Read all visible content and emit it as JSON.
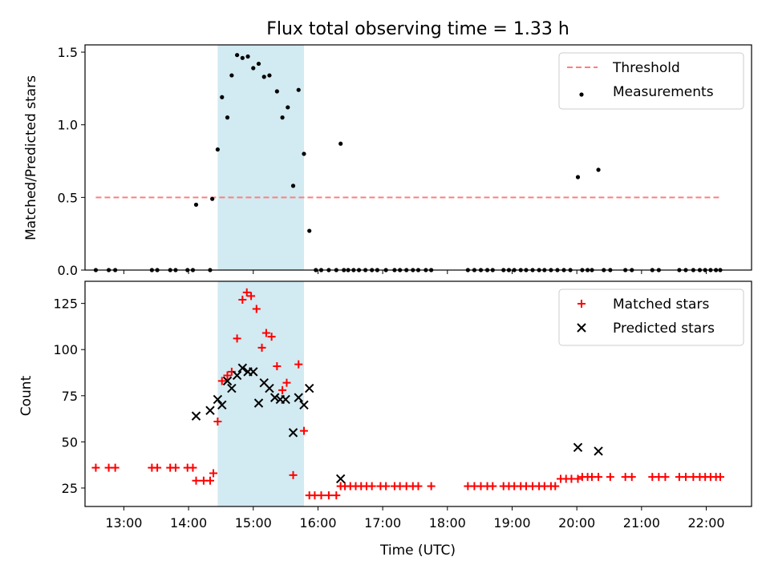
{
  "chart_data": [
    {
      "type": "scatter",
      "title": "Flux total observing time = 1.33 h",
      "xlabel": "",
      "ylabel": "Matched/Predicted stars",
      "xlim": [
        "12:24",
        "22:42"
      ],
      "ylim": [
        0,
        1.55
      ],
      "yticks": [
        0.0,
        0.5,
        1.0,
        1.5
      ],
      "ytick_labels": [
        "0.0",
        "0.5",
        "1.0",
        "1.5"
      ],
      "grid": false,
      "legend_position": "upper right",
      "highlight_span": {
        "start": "14:27",
        "end": "15:47",
        "color": "#add8e6"
      },
      "threshold": {
        "name": "Threshold",
        "value": 0.5,
        "x_start": "12:34",
        "x_end": "22:13",
        "color": "#ff7f7f",
        "style": "dashed"
      },
      "series": [
        {
          "name": "Measurements",
          "color": "#000000",
          "marker": "dot",
          "points": [
            [
              "12:34",
              0
            ],
            [
              "12:46",
              0
            ],
            [
              "12:52",
              0
            ],
            [
              "13:26",
              0
            ],
            [
              "13:31",
              0
            ],
            [
              "13:43",
              0
            ],
            [
              "13:48",
              0
            ],
            [
              "13:59",
              0
            ],
            [
              "14:04",
              0
            ],
            [
              "14:07",
              0.45
            ],
            [
              "14:20",
              0
            ],
            [
              "14:22",
              0.49
            ],
            [
              "14:27",
              0.83
            ],
            [
              "14:31",
              1.19
            ],
            [
              "14:36",
              1.05
            ],
            [
              "14:40",
              1.34
            ],
            [
              "14:45",
              1.48
            ],
            [
              "14:50",
              1.46
            ],
            [
              "14:55",
              1.47
            ],
            [
              "15:00",
              1.39
            ],
            [
              "15:05",
              1.42
            ],
            [
              "15:10",
              1.33
            ],
            [
              "15:15",
              1.34
            ],
            [
              "15:22",
              1.23
            ],
            [
              "15:27",
              1.05
            ],
            [
              "15:32",
              1.12
            ],
            [
              "15:37",
              0.58
            ],
            [
              "15:42",
              1.24
            ],
            [
              "15:47",
              0.8
            ],
            [
              "15:52",
              0.27
            ],
            [
              "15:58",
              0
            ],
            [
              "16:03",
              0
            ],
            [
              "16:10",
              0
            ],
            [
              "16:17",
              0
            ],
            [
              "16:21",
              0.87
            ],
            [
              "16:24",
              0
            ],
            [
              "16:28",
              0
            ],
            [
              "16:33",
              0
            ],
            [
              "16:38",
              0
            ],
            [
              "16:44",
              0
            ],
            [
              "16:50",
              0
            ],
            [
              "16:55",
              0
            ],
            [
              "17:03",
              0
            ],
            [
              "17:11",
              0
            ],
            [
              "17:16",
              0
            ],
            [
              "17:22",
              0
            ],
            [
              "17:28",
              0
            ],
            [
              "17:33",
              0
            ],
            [
              "17:40",
              0
            ],
            [
              "17:45",
              0
            ],
            [
              "18:19",
              0
            ],
            [
              "18:25",
              0
            ],
            [
              "18:31",
              0
            ],
            [
              "18:37",
              0
            ],
            [
              "18:42",
              0
            ],
            [
              "18:52",
              0
            ],
            [
              "18:57",
              0
            ],
            [
              "19:02",
              0
            ],
            [
              "19:08",
              0
            ],
            [
              "19:13",
              0
            ],
            [
              "19:19",
              0
            ],
            [
              "19:25",
              0
            ],
            [
              "19:30",
              0
            ],
            [
              "19:36",
              0
            ],
            [
              "19:42",
              0
            ],
            [
              "19:48",
              0
            ],
            [
              "19:54",
              0
            ],
            [
              "20:01",
              0.64
            ],
            [
              "20:05",
              0
            ],
            [
              "20:10",
              0
            ],
            [
              "20:14",
              0
            ],
            [
              "20:20",
              0.69
            ],
            [
              "20:25",
              0
            ],
            [
              "20:31",
              0
            ],
            [
              "20:45",
              0
            ],
            [
              "20:51",
              0
            ],
            [
              "21:10",
              0
            ],
            [
              "21:16",
              0
            ],
            [
              "21:35",
              0
            ],
            [
              "21:41",
              0
            ],
            [
              "21:48",
              0
            ],
            [
              "21:54",
              0
            ],
            [
              "21:59",
              0
            ],
            [
              "22:04",
              0
            ],
            [
              "22:09",
              0
            ],
            [
              "22:13",
              0
            ]
          ]
        }
      ]
    },
    {
      "type": "scatter",
      "title": "",
      "xlabel": "Time (UTC)",
      "ylabel": "Count",
      "xlim": [
        "12:24",
        "22:42"
      ],
      "ylim": [
        15,
        137
      ],
      "xticks": [
        "13:00",
        "14:00",
        "15:00",
        "16:00",
        "17:00",
        "18:00",
        "19:00",
        "20:00",
        "21:00",
        "22:00"
      ],
      "yticks": [
        25,
        50,
        75,
        100,
        125
      ],
      "grid": false,
      "legend_position": "upper right",
      "highlight_span": {
        "start": "14:27",
        "end": "15:47",
        "color": "#add8e6"
      },
      "series": [
        {
          "name": "Matched stars",
          "color": "#ff0000",
          "marker": "plus",
          "points": [
            [
              "12:34",
              36
            ],
            [
              "12:46",
              36
            ],
            [
              "12:52",
              36
            ],
            [
              "13:26",
              36
            ],
            [
              "13:31",
              36
            ],
            [
              "13:43",
              36
            ],
            [
              "13:48",
              36
            ],
            [
              "13:59",
              36
            ],
            [
              "14:04",
              36
            ],
            [
              "14:07",
              29
            ],
            [
              "14:14",
              29
            ],
            [
              "14:20",
              29
            ],
            [
              "14:23",
              33
            ],
            [
              "14:27",
              61
            ],
            [
              "14:31",
              83
            ],
            [
              "14:36",
              86
            ],
            [
              "14:40",
              88
            ],
            [
              "14:45",
              106
            ],
            [
              "14:50",
              127
            ],
            [
              "14:54",
              131
            ],
            [
              "14:58",
              129
            ],
            [
              "15:03",
              122
            ],
            [
              "15:08",
              101
            ],
            [
              "15:12",
              109
            ],
            [
              "15:17",
              107
            ],
            [
              "15:22",
              91
            ],
            [
              "15:27",
              78
            ],
            [
              "15:31",
              82
            ],
            [
              "15:37",
              32
            ],
            [
              "15:42",
              92
            ],
            [
              "15:47",
              56
            ],
            [
              "15:52",
              21
            ],
            [
              "15:57",
              21
            ],
            [
              "16:03",
              21
            ],
            [
              "16:10",
              21
            ],
            [
              "16:17",
              21
            ],
            [
              "16:21",
              26
            ],
            [
              "16:25",
              26
            ],
            [
              "16:30",
              26
            ],
            [
              "16:35",
              26
            ],
            [
              "16:40",
              26
            ],
            [
              "16:45",
              26
            ],
            [
              "16:50",
              26
            ],
            [
              "16:58",
              26
            ],
            [
              "17:03",
              26
            ],
            [
              "17:11",
              26
            ],
            [
              "17:16",
              26
            ],
            [
              "17:22",
              26
            ],
            [
              "17:28",
              26
            ],
            [
              "17:33",
              26
            ],
            [
              "17:45",
              26
            ],
            [
              "18:19",
              26
            ],
            [
              "18:25",
              26
            ],
            [
              "18:31",
              26
            ],
            [
              "18:37",
              26
            ],
            [
              "18:42",
              26
            ],
            [
              "18:52",
              26
            ],
            [
              "18:57",
              26
            ],
            [
              "19:02",
              26
            ],
            [
              "19:08",
              26
            ],
            [
              "19:13",
              26
            ],
            [
              "19:19",
              26
            ],
            [
              "19:25",
              26
            ],
            [
              "19:30",
              26
            ],
            [
              "19:36",
              26
            ],
            [
              "19:40",
              26
            ],
            [
              "19:45",
              30
            ],
            [
              "19:50",
              30
            ],
            [
              "19:55",
              30
            ],
            [
              "20:01",
              30
            ],
            [
              "20:05",
              31
            ],
            [
              "20:10",
              31
            ],
            [
              "20:14",
              31
            ],
            [
              "20:20",
              31
            ],
            [
              "20:31",
              31
            ],
            [
              "20:45",
              31
            ],
            [
              "20:51",
              31
            ],
            [
              "21:10",
              31
            ],
            [
              "21:16",
              31
            ],
            [
              "21:22",
              31
            ],
            [
              "21:35",
              31
            ],
            [
              "21:41",
              31
            ],
            [
              "21:48",
              31
            ],
            [
              "21:54",
              31
            ],
            [
              "21:59",
              31
            ],
            [
              "22:04",
              31
            ],
            [
              "22:09",
              31
            ],
            [
              "22:13",
              31
            ]
          ]
        },
        {
          "name": "Predicted stars",
          "color": "#000000",
          "marker": "x",
          "points": [
            [
              "14:07",
              64
            ],
            [
              "14:20",
              67
            ],
            [
              "14:27",
              73
            ],
            [
              "14:31",
              70
            ],
            [
              "14:36",
              83
            ],
            [
              "14:40",
              79
            ],
            [
              "14:45",
              86
            ],
            [
              "14:50",
              90
            ],
            [
              "14:55",
              88
            ],
            [
              "15:00",
              88
            ],
            [
              "15:05",
              71
            ],
            [
              "15:10",
              82
            ],
            [
              "15:15",
              79
            ],
            [
              "15:20",
              74
            ],
            [
              "15:25",
              73
            ],
            [
              "15:30",
              73
            ],
            [
              "15:37",
              55
            ],
            [
              "15:42",
              74
            ],
            [
              "15:47",
              70
            ],
            [
              "15:52",
              79
            ],
            [
              "16:21",
              30
            ],
            [
              "20:01",
              47
            ],
            [
              "20:20",
              45
            ]
          ]
        }
      ]
    }
  ]
}
